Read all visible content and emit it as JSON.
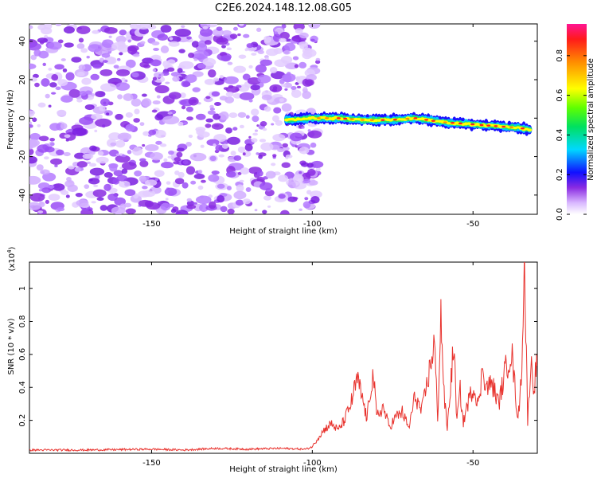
{
  "title": "C2E6.2024.148.12.08.G05",
  "chart_data": [
    {
      "type": "heatmap",
      "xlabel": "Height of straight line (km)",
      "ylabel": "Frequency (Hz)",
      "xlim": [
        -188,
        -30
      ],
      "ylim": [
        -50,
        49
      ],
      "xticks": [
        -150,
        -100,
        -50
      ],
      "yticks": [
        -40,
        -20,
        0,
        20,
        40
      ],
      "noise_region_x": [
        -188,
        -98
      ],
      "signal_track": {
        "x": [
          -108,
          -100,
          -92,
          -84,
          -76,
          -68,
          -60,
          -52,
          -44,
          -36,
          -32
        ],
        "y": [
          -1,
          0,
          0,
          -1,
          -1,
          0,
          -2,
          -3,
          -4,
          -5,
          -6
        ]
      },
      "colorbar": {
        "label": "Normalized spectral amplitude",
        "range": [
          0,
          0.96
        ],
        "ticks": [
          0.0,
          0.2,
          0.4,
          0.6,
          0.8
        ]
      }
    },
    {
      "type": "line",
      "xlabel": "Height of straight line (km)",
      "ylabel": "SNR (10 * v/v)",
      "multiplier": "(x10",
      "multiplier_exp": "4",
      "multiplier_close": ")",
      "xlim": [
        -188,
        -30
      ],
      "ylim": [
        0,
        1.16
      ],
      "xticks": [
        -150,
        -100,
        -50
      ],
      "yticks": [
        0.2,
        0.4,
        0.6,
        0.8,
        1.0
      ],
      "line_color": "#e8322d",
      "series": [
        {
          "x": [
            -188,
            -170,
            -150,
            -140,
            -130,
            -120,
            -110,
            -102,
            -100,
            -98,
            -96,
            -94,
            -92,
            -90,
            -88,
            -86,
            -84,
            -83,
            -82,
            -81,
            -80,
            -78,
            -76,
            -74,
            -72,
            -70,
            -68,
            -66,
            -64,
            -62,
            -61,
            -60,
            -59,
            -58,
            -56,
            -55,
            -54,
            -53,
            -52,
            -50,
            -48,
            -47,
            -46,
            -44,
            -42,
            -40,
            -38,
            -36,
            -35,
            -34,
            -33,
            -32,
            -31,
            -30
          ],
          "y": [
            0.02,
            0.02,
            0.025,
            0.02,
            0.03,
            0.025,
            0.03,
            0.025,
            0.04,
            0.1,
            0.15,
            0.18,
            0.14,
            0.2,
            0.3,
            0.45,
            0.3,
            0.2,
            0.38,
            0.48,
            0.22,
            0.28,
            0.16,
            0.22,
            0.25,
            0.15,
            0.35,
            0.25,
            0.45,
            0.68,
            0.2,
            0.85,
            0.35,
            0.15,
            0.66,
            0.2,
            0.38,
            0.18,
            0.28,
            0.4,
            0.3,
            0.55,
            0.4,
            0.42,
            0.3,
            0.5,
            0.62,
            0.2,
            0.45,
            1.16,
            0.2,
            0.55,
            0.4,
            0.6
          ]
        }
      ]
    }
  ]
}
